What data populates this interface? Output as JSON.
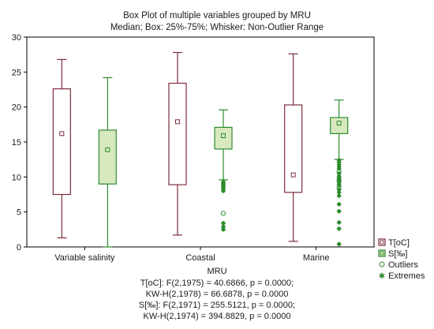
{
  "chart_data": {
    "type": "box",
    "title": "Box Plot of multiple variables grouped by  MRU",
    "subtitle": "Median; Box: 25%-75%; Whisker: Non-Outlier Range",
    "xlabel": "MRU",
    "ylim": [
      0,
      30
    ],
    "yticks": [
      0,
      5,
      10,
      15,
      20,
      25,
      30
    ],
    "grid": false,
    "legend_position": "bottom-right",
    "categories": [
      "Variable salinity",
      "Coastal",
      "Marine"
    ],
    "series": [
      {
        "name": "T[oC]",
        "color": "#7b2d3a",
        "fill": "#ffffff",
        "boxes": [
          {
            "category": "Variable salinity",
            "min": 1.3,
            "q1": 7.5,
            "median": 16.2,
            "q3": 22.6,
            "max": 26.8
          },
          {
            "category": "Coastal",
            "min": 1.7,
            "q1": 8.9,
            "median": 17.9,
            "q3": 23.4,
            "max": 27.8
          },
          {
            "category": "Marine",
            "min": 0.8,
            "q1": 7.8,
            "median": 10.3,
            "q3": 20.3,
            "max": 27.6
          }
        ]
      },
      {
        "name": "S[‰]",
        "color": "#2e8b2e",
        "fill": "#d8e8bf",
        "boxes": [
          {
            "category": "Variable salinity",
            "min": 0.0,
            "q1": 9.0,
            "median": 13.9,
            "q3": 16.7,
            "max": 24.2
          },
          {
            "category": "Coastal",
            "min": 9.6,
            "q1": 14.0,
            "median": 15.9,
            "q3": 17.1,
            "max": 19.6
          },
          {
            "category": "Marine",
            "min": 12.5,
            "q1": 16.2,
            "median": 17.7,
            "q3": 18.5,
            "max": 21.0
          }
        ],
        "outliers": [
          {
            "category": "Coastal",
            "values": [
              4.8
            ]
          },
          {
            "category": "Marine",
            "values": [
              10.8,
              9.5,
              8.5
            ]
          }
        ],
        "extremes": [
          {
            "category": "Coastal",
            "values": [
              9.3,
              9.1,
              8.9,
              8.7,
              8.5,
              8.3,
              8.0,
              3.4,
              2.9,
              2.5
            ]
          },
          {
            "category": "Marine",
            "values": [
              12.4,
              12.1,
              11.8,
              11.5,
              11.2,
              10.5,
              10.1,
              9.9,
              9.7,
              9.3,
              9.0,
              8.8,
              8.2,
              7.8,
              7.3,
              6.1,
              5.1,
              3.5,
              2.6,
              0.4
            ]
          }
        ]
      }
    ],
    "legend": [
      {
        "label": "T[oC]",
        "marker": "box"
      },
      {
        "label": "S[‰]",
        "marker": "box"
      },
      {
        "label": "Outliers",
        "marker": "open-circle"
      },
      {
        "label": "Extremes",
        "marker": "star"
      }
    ],
    "annotations": [
      "T[oC]:   F(2,1975) = 40.6866, p = 0.0000;",
      "KW-H(2,1978) = 66.6878, p = 0.0000",
      "S[‰]:   F(2,1971) = 255.5121, p = 0.0000;",
      "KW-H(2,1974) = 394.8829, p = 0.0000"
    ]
  }
}
